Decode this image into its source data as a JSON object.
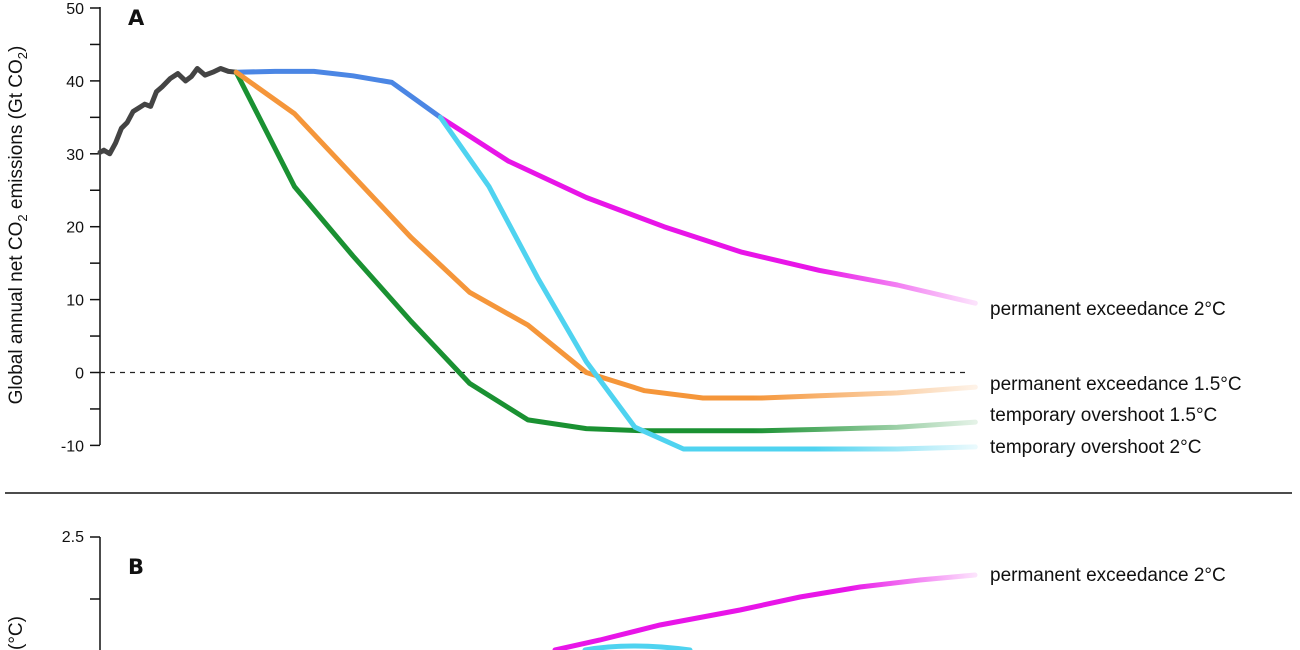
{
  "chart_data": [
    {
      "panel": "A",
      "type": "line",
      "ylabel_parts": [
        "Global annual net CO",
        "2",
        " emissions (Gt CO",
        "2",
        ")"
      ],
      "ylim": [
        -10,
        50
      ],
      "yticks": [
        -10,
        0,
        10,
        20,
        30,
        40,
        50
      ],
      "zero_line": "dashed",
      "history": {
        "color": "#444444",
        "x": [
          0,
          0.2,
          0.5,
          0.8,
          1.1,
          1.4,
          1.7,
          2.0,
          2.3,
          2.6,
          2.9,
          3.2,
          3.6,
          4.0,
          4.4,
          4.7,
          5.0,
          5.4,
          5.8,
          6.2,
          6.6,
          7.0
        ],
        "y": [
          30.2,
          30.5,
          30.0,
          31.5,
          33.5,
          34.3,
          35.8,
          36.3,
          36.8,
          36.5,
          38.5,
          39.2,
          40.3,
          41.0,
          40.0,
          40.6,
          41.7,
          40.8,
          41.2,
          41.7,
          41.3,
          41.2
        ]
      },
      "shared_pathway": {
        "color": "#4b86e4",
        "x": [
          7,
          9,
          11,
          13,
          15,
          17.5
        ],
        "y": [
          41.2,
          41.3,
          41.3,
          40.7,
          39.8,
          35.0
        ]
      },
      "series": [
        {
          "name": "permanent exceedance 2°C",
          "color": "#e815e8",
          "x": [
            17.5,
            21,
            25,
            29,
            33,
            37,
            41,
            45
          ],
          "y": [
            35.0,
            29.0,
            24.0,
            20.0,
            16.5,
            14.0,
            12.0,
            9.5
          ]
        },
        {
          "name": "permanent exceedance 1.5°C",
          "color": "#f5963a",
          "x": [
            7,
            10,
            13,
            16,
            19,
            22,
            25,
            28,
            31,
            34,
            37,
            41,
            45
          ],
          "y": [
            41.2,
            35.5,
            27.0,
            18.5,
            11.0,
            6.5,
            0.0,
            -2.5,
            -3.5,
            -3.5,
            -3.2,
            -2.8,
            -2.0
          ]
        },
        {
          "name": "temporary overshoot 1.5°C",
          "color": "#1a9132",
          "x": [
            7,
            10,
            13,
            16,
            19,
            22,
            25,
            28,
            31,
            34,
            37,
            41,
            45
          ],
          "y": [
            41.2,
            25.5,
            16.0,
            7.0,
            -1.5,
            -6.5,
            -7.7,
            -8.0,
            -8.0,
            -8.0,
            -7.8,
            -7.5,
            -6.8
          ]
        },
        {
          "name": "temporary overshoot 2°C",
          "color": "#4fd3f0",
          "x": [
            17.5,
            20,
            22.5,
            25,
            27.5,
            30,
            33,
            37,
            41,
            45
          ],
          "y": [
            35.0,
            25.5,
            13.0,
            1.5,
            -7.5,
            -10.5,
            -10.5,
            -10.5,
            -10.5,
            -10.2
          ]
        }
      ]
    },
    {
      "panel": "B",
      "type": "line",
      "yticks_visible": [
        "2.5"
      ],
      "series": [
        {
          "name": "permanent exceedance 2°C",
          "color": "#e815e8"
        },
        {
          "name": "temporary overshoot 2°C",
          "color": "#4fd3f0"
        }
      ]
    }
  ]
}
